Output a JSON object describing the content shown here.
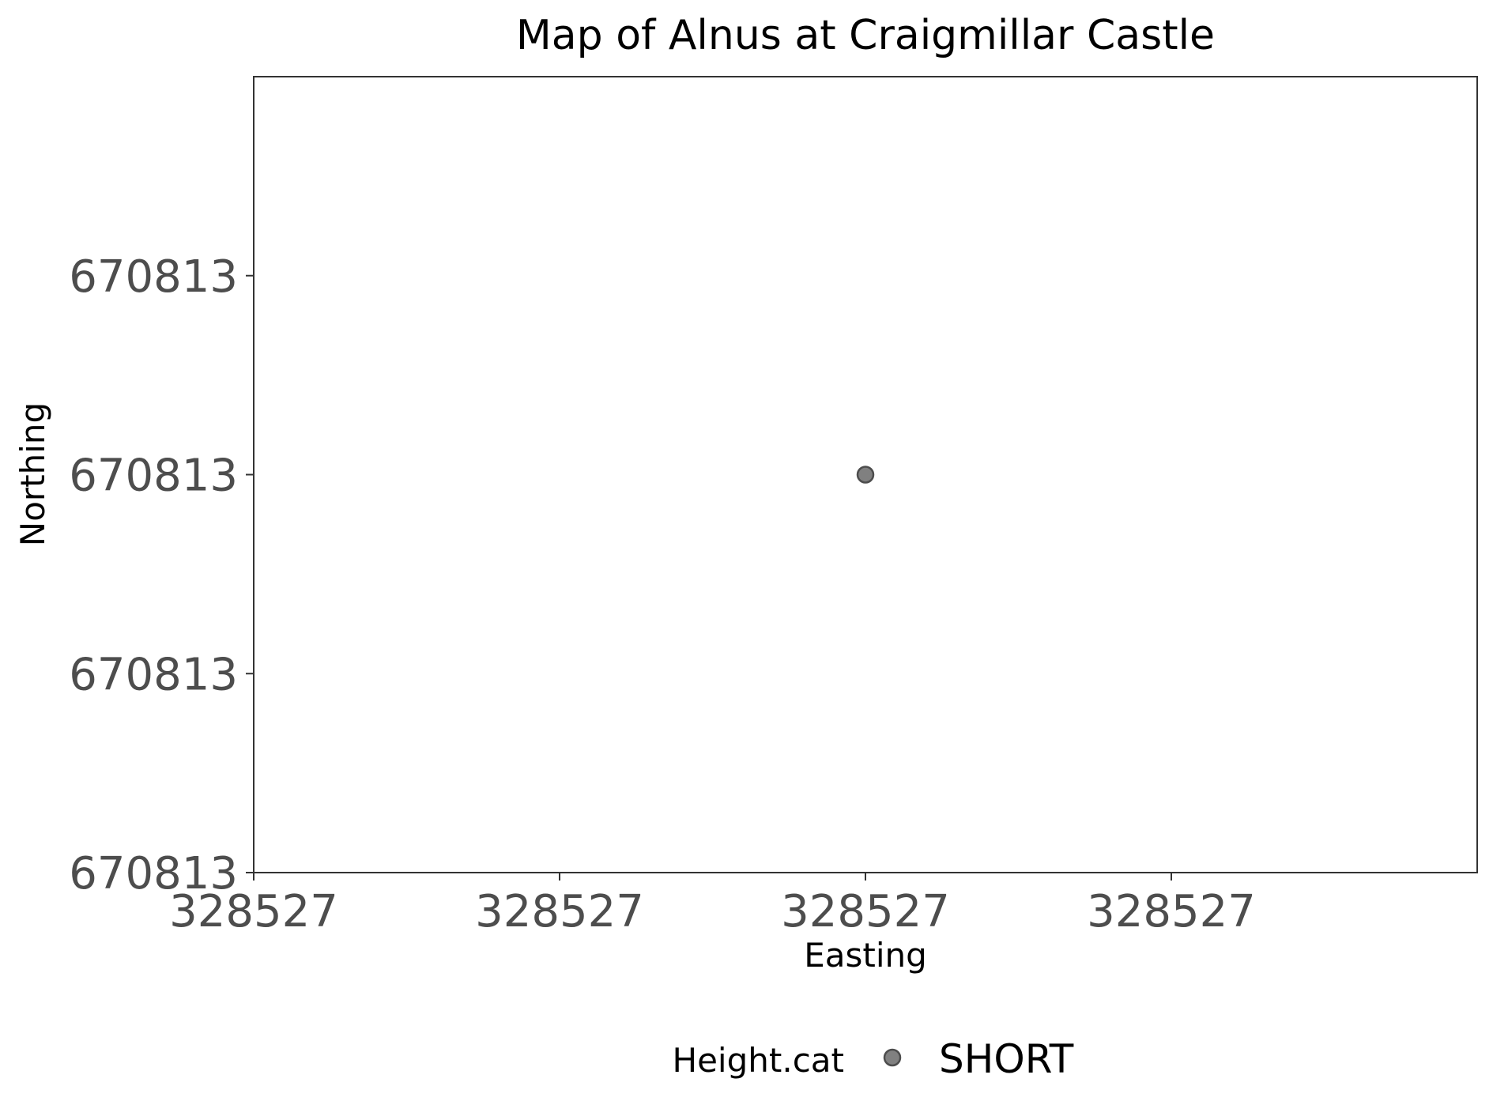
{
  "chart_data": {
    "type": "scatter",
    "title": "Map of Alnus at Craigmillar Castle",
    "xlabel": "Easting",
    "ylabel": "Northing",
    "x_ticks": [
      {
        "value": 0.0,
        "label": "328527"
      },
      {
        "value": 0.25,
        "label": "328527"
      },
      {
        "value": 0.5,
        "label": "328527"
      },
      {
        "value": 0.75,
        "label": "328527"
      }
    ],
    "y_ticks": [
      {
        "value": 0.0,
        "label": "670813"
      },
      {
        "value": 0.25,
        "label": "670813"
      },
      {
        "value": 0.5,
        "label": "670813"
      },
      {
        "value": 0.75,
        "label": "670813"
      }
    ],
    "xlim": [
      0,
      1
    ],
    "ylim": [
      0,
      1
    ],
    "grid": false,
    "legend": {
      "title": "Height.cat",
      "placement": "bottom",
      "entries": [
        {
          "label": "SHORT",
          "color": "#808080"
        }
      ]
    },
    "series": [
      {
        "name": "SHORT",
        "color": "#808080",
        "points": [
          {
            "x": 0.5,
            "y": 0.5
          }
        ]
      }
    ]
  }
}
